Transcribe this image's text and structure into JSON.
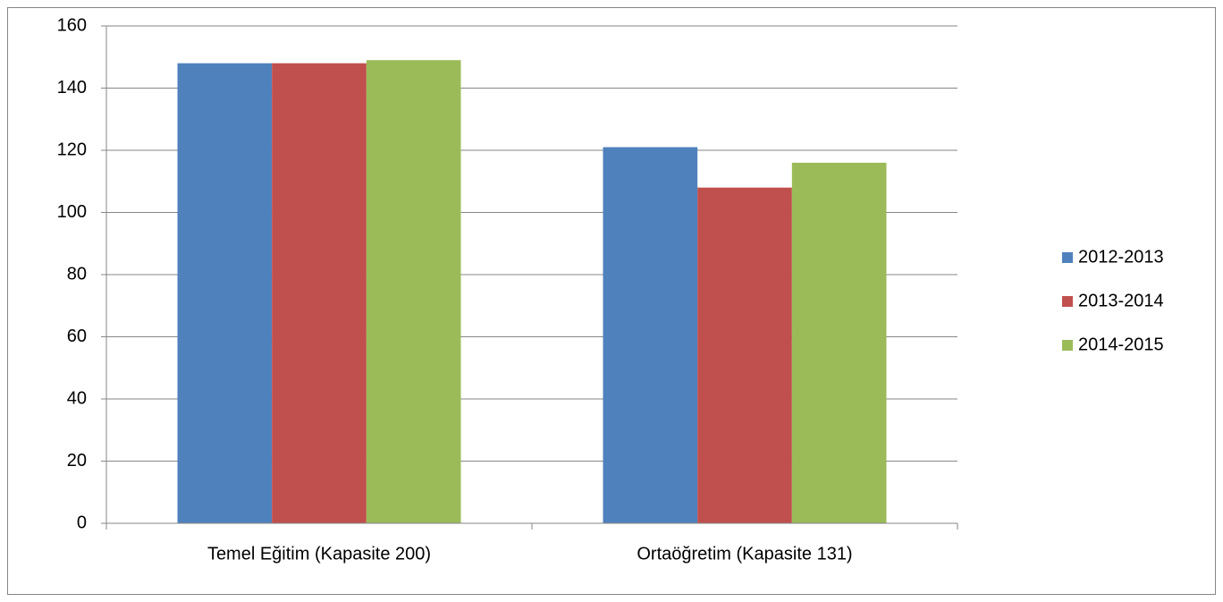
{
  "chart_data": {
    "type": "bar",
    "categories": [
      "Temel Eğitim (Kapasite 200)",
      "Ortaöğretim (Kapasite 131)"
    ],
    "series": [
      {
        "name": "2012-2013",
        "color": "#4f81bd",
        "values": [
          148,
          121
        ]
      },
      {
        "name": "2013-2014",
        "color": "#c0504d",
        "values": [
          148,
          108
        ]
      },
      {
        "name": "2014-2015",
        "color": "#9bbb59",
        "values": [
          149,
          116
        ]
      }
    ],
    "ylim": [
      0,
      160
    ],
    "yticks": [
      0,
      20,
      40,
      60,
      80,
      100,
      120,
      140,
      160
    ],
    "grid": true,
    "legend": "right"
  }
}
